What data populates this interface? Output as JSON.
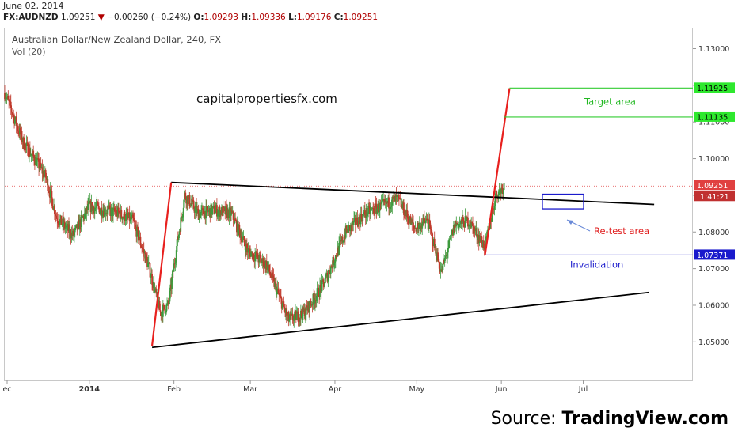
{
  "header": {
    "date": "June 02, 2014",
    "symbol": "FX:AUDNZD",
    "last": "1.09251",
    "change_arrow": "▼",
    "change": "−0.00260 (−0.24%)",
    "open_label": "O:",
    "open": "1.09293",
    "high_label": "H:",
    "high": "1.09336",
    "low_label": "L:",
    "low": "1.09176",
    "close_label": "C:",
    "close": "1.09251"
  },
  "chart_title": "Australian Dollar/New Zealand Dollar, 240, FX",
  "volume_label": "Vol (20)",
  "watermark": "capitalpropertiesfx.com",
  "source": {
    "prefix": "Source: ",
    "brand": "TradingView.com"
  },
  "colors": {
    "up_candle": "#3d9a3d",
    "down_candle": "#c0392b",
    "target_line": "#33cc33",
    "target_tag": "#2ee82e",
    "invalidation": "#1a1acc",
    "red_projection": "#e8201e",
    "trendline": "#000000",
    "current_price": "#e04040"
  },
  "chart_data": {
    "type": "candlestick",
    "title": "Australian Dollar/New Zealand Dollar, 240, FX",
    "ylim": [
      1.04,
      1.135
    ],
    "y_ticks": [
      "1.13000",
      "1.12000",
      "1.11000",
      "1.10000",
      "1.09000",
      "1.08000",
      "1.07000",
      "1.06000",
      "1.05000"
    ],
    "x_ticks": [
      "ec",
      "2014",
      "Feb",
      "Mar",
      "Apr",
      "May",
      "Jun",
      "Jul"
    ],
    "x_bold_ticks": [
      "2014"
    ],
    "price_path": [
      [
        "2013-12-01",
        1.118
      ],
      [
        "2013-12-08",
        1.104
      ],
      [
        "2013-12-12",
        1.1
      ],
      [
        "2013-12-16",
        1.095
      ],
      [
        "2013-12-20",
        1.084
      ],
      [
        "2013-12-26",
        1.079
      ],
      [
        "2014-01-01",
        1.087
      ],
      [
        "2014-01-06",
        1.086
      ],
      [
        "2014-01-12",
        1.085
      ],
      [
        "2014-01-17",
        1.083
      ],
      [
        "2014-01-23",
        1.07
      ],
      [
        "2014-01-27",
        1.058
      ],
      [
        "2014-01-30",
        1.06
      ],
      [
        "2014-02-02",
        1.076
      ],
      [
        "2014-02-05",
        1.09
      ],
      [
        "2014-02-10",
        1.085
      ],
      [
        "2014-02-16",
        1.086
      ],
      [
        "2014-02-22",
        1.085
      ],
      [
        "2014-02-28",
        1.075
      ],
      [
        "2014-03-07",
        1.071
      ],
      [
        "2014-03-15",
        1.056
      ],
      [
        "2014-03-21",
        1.058
      ],
      [
        "2014-03-28",
        1.066
      ],
      [
        "2014-04-05",
        1.08
      ],
      [
        "2014-04-12",
        1.085
      ],
      [
        "2014-04-18",
        1.087
      ],
      [
        "2014-04-24",
        1.089
      ],
      [
        "2014-04-30",
        1.081
      ],
      [
        "2014-05-05",
        1.083
      ],
      [
        "2014-05-10",
        1.069
      ],
      [
        "2014-05-15",
        1.082
      ],
      [
        "2014-05-20",
        1.083
      ],
      [
        "2014-05-26",
        1.076
      ],
      [
        "2014-05-30",
        1.09
      ],
      [
        "2014-06-02",
        1.0925
      ]
    ],
    "current_price": {
      "value": 1.09251,
      "label": "1.09251",
      "countdown": "1:41:21"
    },
    "trendlines": [
      {
        "name": "upper",
        "from": [
          "2014-01-31",
          1.0935
        ],
        "to": [
          "2014-07-27",
          1.0875
        ]
      },
      {
        "name": "lower",
        "from": [
          "2014-01-24",
          1.0485
        ],
        "to": [
          "2014-07-25",
          1.0635
        ]
      }
    ],
    "projections": [
      {
        "from": [
          "2014-01-24",
          1.049
        ],
        "to": [
          "2014-01-31",
          1.0935
        ]
      },
      {
        "from": [
          "2014-05-26",
          1.0737
        ],
        "to": [
          "2014-06-04",
          1.1192
        ]
      }
    ],
    "levels": [
      {
        "value": 1.11925,
        "label": "1.11925",
        "color": "#33cc33"
      },
      {
        "value": 1.11135,
        "label": "1.11135",
        "color": "#33cc33"
      },
      {
        "value": 1.07371,
        "label": "1.07371",
        "color": "#1a1acc"
      }
    ],
    "annotations": {
      "target": "Target area",
      "retest": "Re-test area",
      "invalidation": "Invalidation"
    }
  }
}
